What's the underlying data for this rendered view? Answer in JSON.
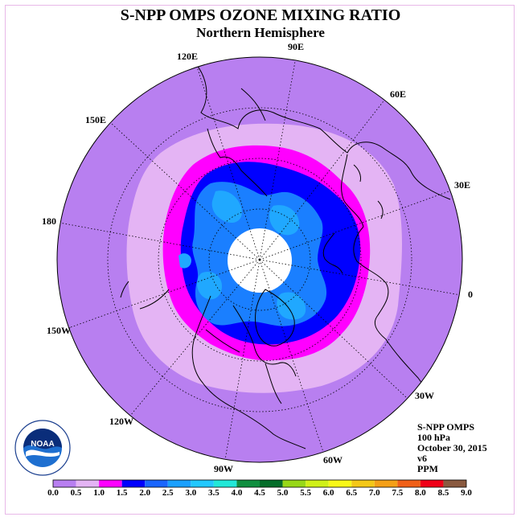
{
  "header": {
    "title": "S-NPP OMPS OZONE MIXING RATIO",
    "subtitle": "Northern Hemisphere"
  },
  "map_labels": {
    "lon_90E": "90E",
    "lon_120E": "120E",
    "lon_60E": "60E",
    "lon_150E": "150E",
    "lon_30E": "30E",
    "lon_180": "180",
    "lon_0": "0",
    "lon_150W": "150W",
    "lon_30W": "30W",
    "lon_120W": "120W",
    "lon_60W": "60W",
    "lon_90W": "90W"
  },
  "info": {
    "instrument": "S-NPP OMPS",
    "level": "100 hPa",
    "date": "October 30, 2015",
    "version": "v6",
    "units": "PPM"
  },
  "logo": {
    "text": "NOAA",
    "ring_text": "NATIONAL OCEANIC AND ATMOSPHERIC ADMINISTRATION U.S. DEPARTMENT OF COMMERCE"
  },
  "colorbar": {
    "ticks": [
      "0.0",
      "0.5",
      "1.0",
      "1.5",
      "2.0",
      "2.5",
      "3.0",
      "3.5",
      "4.0",
      "4.5",
      "5.0",
      "5.5",
      "6.0",
      "6.5",
      "7.0",
      "7.5",
      "8.0",
      "8.5",
      "9.0"
    ],
    "colors": [
      "#b87ff0",
      "#e4b4f4",
      "#ff00ff",
      "#0000ff",
      "#1a66ff",
      "#1aa0ff",
      "#22c8ff",
      "#22e8d8",
      "#108f40",
      "#056e2a",
      "#98d818",
      "#d0f018",
      "#f8f818",
      "#f4c818",
      "#f4a018",
      "#f06018",
      "#f00018",
      "#8a5a40"
    ]
  },
  "colors": {
    "outer_ring": "#b87ff0",
    "light_band": "#e4b4f4",
    "magenta": "#ff00ff",
    "blue": "#0000ff",
    "mid_blue": "#1a7fff",
    "light_blue": "#20a8ff",
    "pole_hole": "#ffffff"
  }
}
